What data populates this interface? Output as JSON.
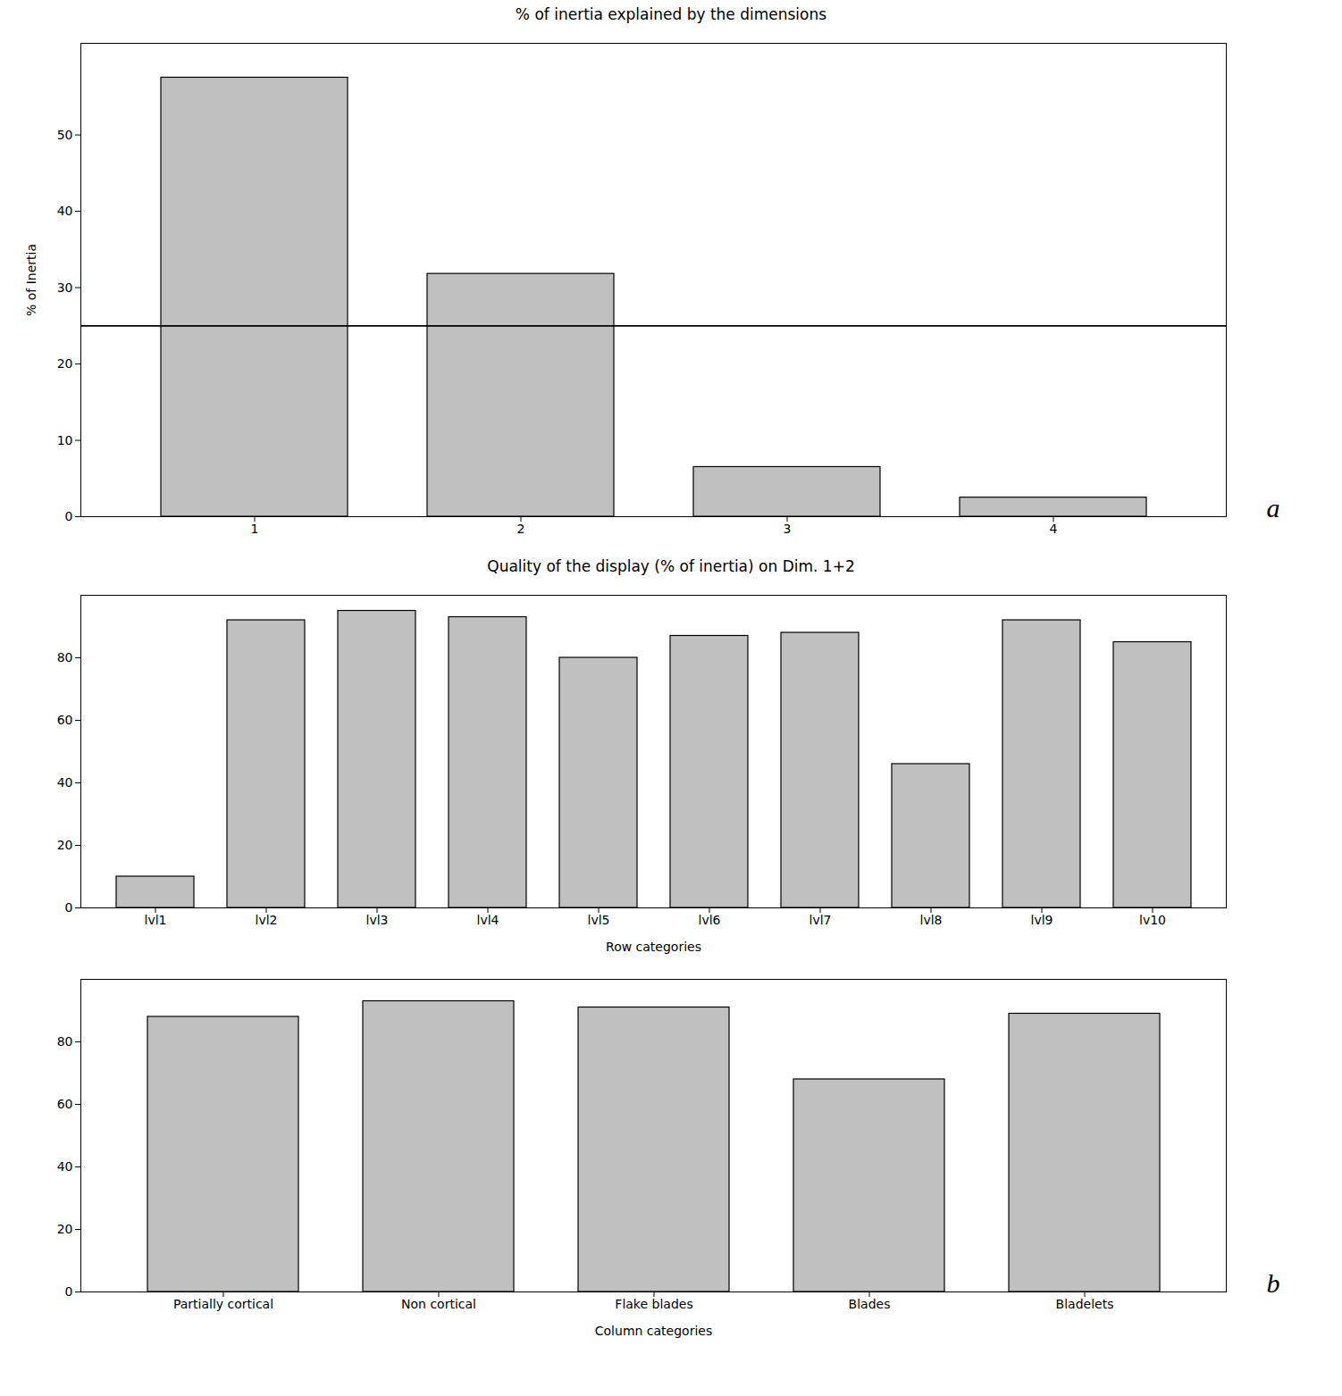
{
  "chart_data": [
    {
      "type": "bar",
      "title": "% of inertia explained by the dimensions",
      "ylabel": "% of Inertia",
      "categories": [
        1,
        2,
        3,
        4
      ],
      "values": [
        57.5,
        31.8,
        6.5,
        2.5
      ],
      "color": "#c0c0c0",
      "ylim": [
        0,
        62
      ],
      "yticks": [
        0,
        10,
        20,
        30,
        40,
        50
      ],
      "threshold": 25.0,
      "annotations": [
        "a"
      ],
      "grid": false
    },
    {
      "type": "bar",
      "title": "Quality of the display (% of inertia) on Dim. 1+2",
      "xlabel": "Row categories",
      "categories": [
        "lvl1",
        "lvl2",
        "lvl3",
        "lvl4",
        "lvl5",
        "lvl6",
        "lvl7",
        "lvl8",
        "lvl9",
        "lv10"
      ],
      "values": [
        10,
        92,
        95,
        93,
        80,
        87,
        88,
        46,
        92,
        85
      ],
      "color": "#c0c0c0",
      "ylim": [
        0,
        100
      ],
      "yticks": [
        0,
        20,
        40,
        60,
        80
      ],
      "grid": false
    },
    {
      "type": "bar",
      "xlabel": "Column categories",
      "categories": [
        "Partially cortical",
        "Non cortical",
        "Flake blades",
        "Blades",
        "Bladelets"
      ],
      "values": [
        88,
        93,
        91,
        68,
        89
      ],
      "color": "#c0c0c0",
      "ylim": [
        0,
        100
      ],
      "yticks": [
        0,
        20,
        40,
        60,
        80
      ],
      "annotations": [
        "b"
      ],
      "grid": false
    }
  ]
}
